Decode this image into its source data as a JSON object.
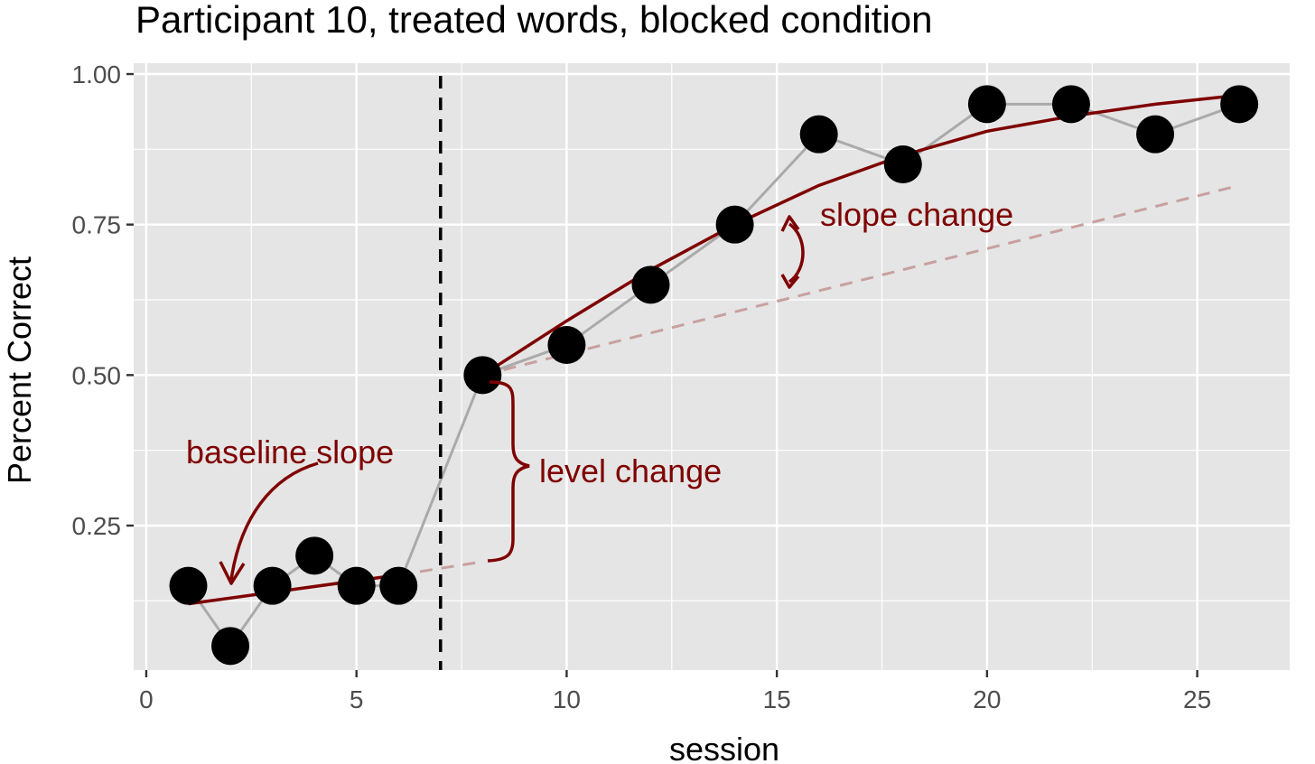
{
  "chart_data": {
    "type": "scatter",
    "title": "Participant 10, treated words, blocked condition",
    "xlabel": "session",
    "ylabel": "Percent Correct",
    "xlim": [
      -0.3,
      27.2
    ],
    "ylim": [
      0.0,
      1.0
    ],
    "x_ticks": [
      0,
      5,
      10,
      15,
      20,
      25
    ],
    "x_tick_labels": [
      "0",
      "5",
      "10",
      "15",
      "20",
      "25"
    ],
    "y_ticks": [
      0.25,
      0.5,
      0.75,
      1.0
    ],
    "y_tick_labels": [
      "0.25",
      "0.50",
      "0.75",
      "1.00"
    ],
    "grid": true,
    "phase_change_x": 7,
    "series": [
      {
        "x": [
          1,
          2,
          3,
          4,
          5,
          6,
          8,
          10,
          12,
          14,
          16,
          18,
          20,
          22,
          24,
          26
        ],
        "y": [
          0.15,
          0.05,
          0.15,
          0.2,
          0.15,
          0.15,
          0.5,
          0.55,
          0.65,
          0.75,
          0.9,
          0.85,
          0.95,
          0.95,
          0.9,
          0.95
        ]
      }
    ],
    "baseline_fit": {
      "x": [
        1,
        6
      ],
      "y": [
        0.12,
        0.168
      ]
    },
    "baseline_projection": {
      "x": [
        6,
        8
      ],
      "y": [
        0.168,
        0.19
      ]
    },
    "treatment_fit": {
      "x": [
        8,
        10,
        12,
        14,
        16,
        18,
        20,
        22,
        24,
        26
      ],
      "y": [
        0.5,
        0.59,
        0.675,
        0.75,
        0.815,
        0.865,
        0.905,
        0.93,
        0.95,
        0.965
      ]
    },
    "treatment_linear_projection": {
      "x": [
        8,
        26
      ],
      "y": [
        0.5,
        0.815
      ]
    },
    "annotations": {
      "baseline_slope": "baseline slope",
      "level_change": "level change",
      "slope_change": "slope change"
    },
    "colors": {
      "panel": "#e5e5e5",
      "grid": "#ffffff",
      "points": "#000000",
      "connector": "#aaaaaa",
      "fit": "#7f0000",
      "projection": "#c8a0a0",
      "phase_line": "#000000",
      "tick_text": "#4d4d4d"
    }
  }
}
